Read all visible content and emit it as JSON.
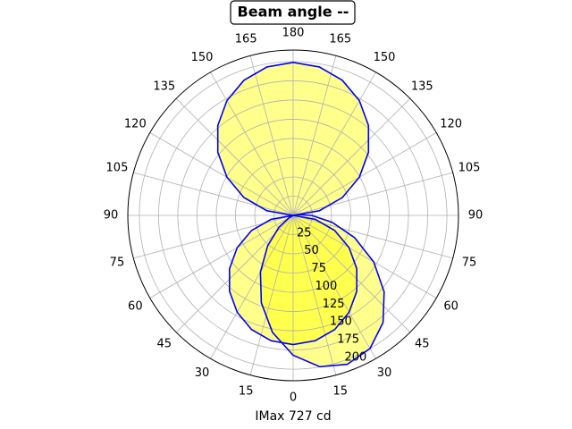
{
  "chart_data": {
    "type": "polar",
    "title": "Beam angle --",
    "xlabel": "IMax 727 cd",
    "rlim": [
      0,
      215
    ],
    "rticks": [
      25,
      50,
      75,
      100,
      125,
      150,
      175,
      200
    ],
    "thetaticks_right": [
      0,
      15,
      30,
      45,
      60,
      75,
      90,
      105,
      120,
      135,
      150,
      165,
      180
    ],
    "thetaticks_left": [
      15,
      30,
      45,
      60,
      75,
      90,
      105,
      120,
      135,
      150,
      165
    ],
    "grid": true,
    "fill": "#ffff00",
    "series": [
      {
        "color": "#0000ff",
        "theta": [
          90,
          100,
          110,
          120,
          130,
          140,
          150,
          160,
          170,
          180,
          190,
          200,
          210,
          220,
          230,
          240,
          250,
          260,
          270
        ],
        "values": [
          0,
          34.6,
          68.1,
          99.5,
          127.9,
          152.4,
          172.3,
          187,
          196,
          199,
          196,
          187,
          172.3,
          152.4,
          127.9,
          99.5,
          68.1,
          34.6,
          0
        ]
      },
      {
        "color": "#0000ff",
        "theta": [
          270,
          280,
          290,
          300,
          310,
          320,
          330,
          340,
          350,
          0,
          10,
          20,
          30,
          40,
          50,
          60,
          70,
          80,
          90
        ],
        "values": [
          0,
          29.2,
          57.5,
          84,
          108,
          128.7,
          145.5,
          157.9,
          165.4,
          168,
          165.4,
          157.9,
          145.5,
          128.7,
          108,
          84,
          57.5,
          29.2,
          0
        ]
      },
      {
        "color": "#0000ff",
        "theta": [
          290,
          300,
          310,
          320,
          330,
          340,
          350,
          0,
          10,
          20,
          30,
          40,
          50,
          60,
          70,
          80,
          90,
          100,
          110
        ],
        "values": [
          0,
          6.2,
          24.1,
          51.5,
          85.1,
          120.9,
          154.5,
          181.9,
          199.8,
          206,
          199.8,
          181.9,
          154.5,
          120.9,
          85.1,
          51.5,
          24.1,
          6.2,
          0
        ]
      }
    ]
  }
}
